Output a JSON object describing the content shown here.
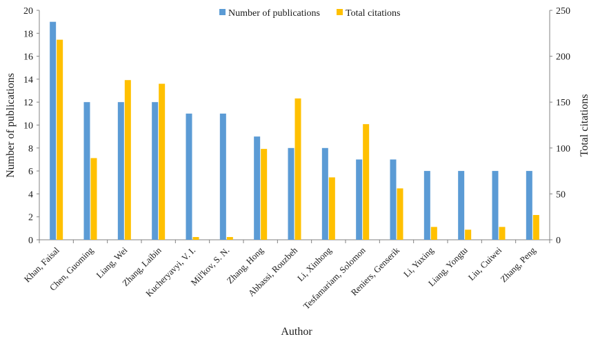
{
  "chart_data": {
    "type": "bar",
    "categories": [
      "Khan, Faisal",
      "Chen, Guoming",
      "Liang, Wei",
      "Zhang, Laibin",
      "Kucheryavyi, V. I.",
      "Mil'kov, S. N.",
      "Zhang, Hong",
      "Abbassi, Rouzbeh",
      "Li, Xinhong",
      "Tesfamariam, Solomon",
      "Reniers, Genserik",
      "Li, Yuxing",
      "Liang, Yongtu",
      "Liu, Cuiwei",
      "Zhang, Peng"
    ],
    "series": [
      {
        "name": "Number of publications",
        "axis": "left",
        "color": "#5b9bd5",
        "values": [
          19,
          12,
          12,
          12,
          11,
          11,
          9,
          8,
          8,
          7,
          7,
          6,
          6,
          6,
          6
        ]
      },
      {
        "name": "Total citations",
        "axis": "right",
        "color": "#ffc000",
        "values": [
          218,
          89,
          174,
          170,
          3,
          3,
          99,
          154,
          68,
          126,
          56,
          14,
          11,
          14,
          27
        ]
      }
    ],
    "xlabel": "Author",
    "ylabel": "Number of publications",
    "y2label": "Total citations",
    "ylim": [
      0,
      20
    ],
    "y2lim": [
      0,
      250
    ],
    "yticks": [
      "0",
      "2",
      "4",
      "6",
      "8",
      "10",
      "12",
      "14",
      "16",
      "18",
      "20"
    ],
    "y2ticks": [
      "0",
      "50",
      "100",
      "150",
      "200",
      "250"
    ],
    "legend_position": "top",
    "grid": false
  }
}
